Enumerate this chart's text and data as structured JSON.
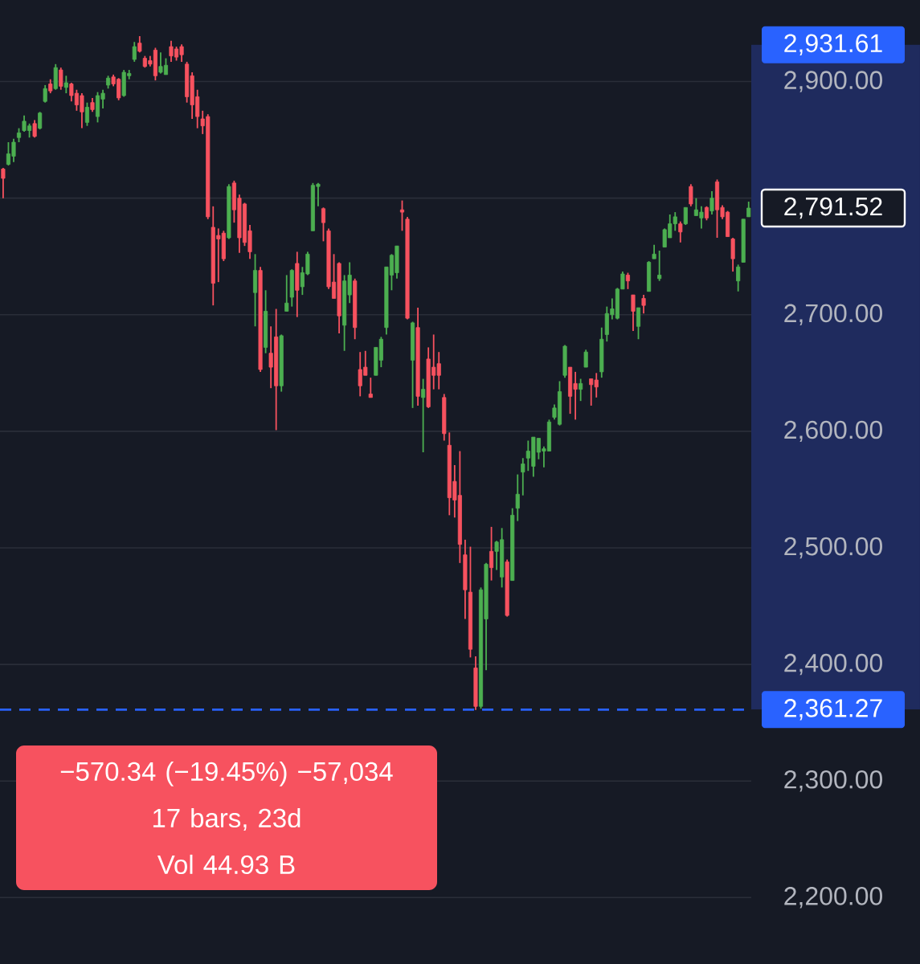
{
  "chart_data": {
    "type": "candlestick",
    "categories": [
      null,
      null,
      null,
      null,
      null,
      null,
      null,
      null,
      null,
      null,
      null,
      null,
      null,
      null,
      null,
      null,
      null,
      null,
      null,
      null,
      null,
      null,
      null,
      null,
      null,
      null,
      null,
      null,
      null,
      null,
      null,
      null,
      null,
      null,
      null,
      null,
      null,
      null,
      null,
      null,
      null,
      null,
      null,
      null,
      null,
      null,
      null,
      null,
      null,
      null,
      null,
      null,
      null,
      null,
      null,
      null,
      null,
      null,
      null,
      null,
      null,
      null,
      null,
      null,
      null,
      null,
      null,
      null,
      null,
      null,
      null,
      null,
      null,
      null,
      null,
      null,
      null,
      null,
      null,
      null,
      null,
      null,
      null,
      null,
      null,
      null,
      null,
      null,
      null,
      null,
      null,
      null,
      null,
      null,
      null,
      null,
      null,
      null,
      null,
      null,
      null,
      null,
      null,
      null,
      null,
      null,
      null,
      null,
      null,
      null,
      null,
      null,
      null,
      null,
      null,
      null,
      null,
      null,
      null,
      null,
      null,
      null,
      null,
      null,
      null,
      null,
      null,
      null,
      null,
      null,
      null,
      null,
      null,
      null,
      null,
      null,
      null,
      null,
      null,
      null,
      null,
      null,
      null
    ],
    "ohlc": [
      [
        2825,
        2826,
        2800,
        2817
      ],
      [
        2829,
        2848,
        2828,
        2838
      ],
      [
        2836,
        2851,
        2831,
        2848
      ],
      [
        2852,
        2860,
        2848,
        2856
      ],
      [
        2858,
        2871,
        2857,
        2866
      ],
      [
        2858,
        2864,
        2852,
        2862
      ],
      [
        2864,
        2867,
        2852,
        2853
      ],
      [
        2860,
        2874,
        2859,
        2873
      ],
      [
        2883,
        2897,
        2882,
        2894
      ],
      [
        2898,
        2902,
        2890,
        2892
      ],
      [
        2894,
        2915,
        2893,
        2912
      ],
      [
        2910,
        2912,
        2893,
        2896
      ],
      [
        2895,
        2905,
        2890,
        2899
      ],
      [
        2898,
        2899,
        2883,
        2888
      ],
      [
        2890,
        2893,
        2875,
        2880
      ],
      [
        2888,
        2890,
        2860,
        2874
      ],
      [
        2865,
        2882,
        2862,
        2878
      ],
      [
        2882,
        2886,
        2874,
        2876
      ],
      [
        2870,
        2891,
        2865,
        2888
      ],
      [
        2885,
        2893,
        2877,
        2890
      ],
      [
        2897,
        2905,
        2894,
        2903
      ],
      [
        2904,
        2906,
        2896,
        2898
      ],
      [
        2902,
        2903,
        2884,
        2886
      ],
      [
        2888,
        2910,
        2887,
        2908
      ],
      [
        2905,
        2910,
        2902,
        2907
      ],
      [
        2919,
        2934,
        2917,
        2930
      ],
      [
        2933,
        2939,
        2925,
        2926
      ],
      [
        2920,
        2922,
        2912,
        2913
      ],
      [
        2918,
        2922,
        2913,
        2915
      ],
      [
        2927,
        2929,
        2901,
        2905
      ],
      [
        2908,
        2925,
        2907,
        2913
      ],
      [
        2906,
        2920,
        2906,
        2914
      ],
      [
        2930,
        2935,
        2917,
        2922
      ],
      [
        2928,
        2930,
        2918,
        2921
      ],
      [
        2930,
        2932,
        2917,
        2923
      ],
      [
        2915,
        2917,
        2882,
        2887
      ],
      [
        2905,
        2908,
        2868,
        2880
      ],
      [
        2887,
        2893,
        2860,
        2870
      ],
      [
        2868,
        2875,
        2855,
        2862
      ],
      [
        2870,
        2872,
        2782,
        2784
      ],
      [
        2775,
        2793,
        2708,
        2727
      ],
      [
        2768,
        2774,
        2728,
        2765
      ],
      [
        2770,
        2772,
        2746,
        2748
      ],
      [
        2766,
        2812,
        2765,
        2810
      ],
      [
        2813,
        2815,
        2779,
        2790
      ],
      [
        2800,
        2803,
        2753,
        2766
      ],
      [
        2795,
        2796,
        2759,
        2762
      ],
      [
        2772,
        2777,
        2748,
        2754
      ],
      [
        2719,
        2752,
        2690,
        2738
      ],
      [
        2738,
        2741,
        2651,
        2653
      ],
      [
        2672,
        2721,
        2667,
        2703
      ],
      [
        2667,
        2690,
        2637,
        2655
      ],
      [
        2681,
        2705,
        2601,
        2639
      ],
      [
        2639,
        2683,
        2634,
        2682
      ],
      [
        2703,
        2734,
        2703,
        2710
      ],
      [
        2715,
        2739,
        2707,
        2738
      ],
      [
        2744,
        2754,
        2698,
        2721
      ],
      [
        2724,
        2741,
        2717,
        2736
      ],
      [
        2735,
        2754,
        2734,
        2752
      ],
      [
        2772,
        2813,
        2772,
        2811
      ],
      [
        2810,
        2813,
        2793,
        2812
      ],
      [
        2791,
        2792,
        2763,
        2779
      ],
      [
        2772,
        2774,
        2722,
        2724
      ],
      [
        2728,
        2752,
        2714,
        2714
      ],
      [
        2744,
        2745,
        2684,
        2699
      ],
      [
        2691,
        2734,
        2669,
        2729
      ],
      [
        2717,
        2745,
        2710,
        2734
      ],
      [
        2729,
        2731,
        2679,
        2689
      ],
      [
        2653,
        2668,
        2630,
        2639
      ],
      [
        2655,
        2669,
        2648,
        2648
      ],
      [
        2632,
        2646,
        2629,
        2629
      ],
      [
        2648,
        2672,
        2648,
        2672
      ],
      [
        2661,
        2681,
        2655,
        2679
      ],
      [
        2689,
        2741,
        2683,
        2741
      ],
      [
        2734,
        2752,
        2721,
        2751
      ],
      [
        2736,
        2759,
        2731,
        2759
      ],
      [
        2790,
        2798,
        2772,
        2788
      ],
      [
        2782,
        2784,
        2696,
        2697
      ],
      [
        2661,
        2694,
        2620,
        2693
      ],
      [
        2689,
        2706,
        2622,
        2630
      ],
      [
        2629,
        2645,
        2582,
        2636
      ],
      [
        2662,
        2672,
        2620,
        2621
      ],
      [
        2655,
        2683,
        2636,
        2648
      ],
      [
        2658,
        2668,
        2636,
        2648
      ],
      [
        2629,
        2632,
        2592,
        2598
      ],
      [
        2588,
        2599,
        2528,
        2543
      ],
      [
        2557,
        2571,
        2526,
        2541
      ],
      [
        2545,
        2583,
        2487,
        2503
      ],
      [
        2494,
        2507,
        2439,
        2464
      ],
      [
        2462,
        2501,
        2406,
        2413
      ],
      [
        2397,
        2407,
        2361,
        2364
      ],
      [
        2364,
        2466,
        2362,
        2464
      ],
      [
        2439,
        2487,
        2395,
        2486
      ],
      [
        2497,
        2518,
        2472,
        2483
      ],
      [
        2497,
        2506,
        2481,
        2505
      ],
      [
        2475,
        2517,
        2466,
        2507
      ],
      [
        2488,
        2490,
        2441,
        2442
      ],
      [
        2472,
        2534,
        2472,
        2528
      ],
      [
        2534,
        2563,
        2523,
        2546
      ],
      [
        2565,
        2577,
        2545,
        2572
      ],
      [
        2577,
        2592,
        2566,
        2583
      ],
      [
        2570,
        2595,
        2561,
        2595
      ],
      [
        2582,
        2594,
        2576,
        2594
      ],
      [
        2583,
        2587,
        2569,
        2585
      ],
      [
        2583,
        2610,
        2583,
        2608
      ],
      [
        2612,
        2623,
        2610,
        2620
      ],
      [
        2606,
        2643,
        2605,
        2634
      ],
      [
        2648,
        2674,
        2646,
        2673
      ],
      [
        2655,
        2655,
        2615,
        2630
      ],
      [
        2641,
        2651,
        2610,
        2636
      ],
      [
        2636,
        2645,
        2626,
        2641
      ],
      [
        2655,
        2670,
        2655,
        2668
      ],
      [
        2645,
        2645,
        2622,
        2640
      ],
      [
        2644,
        2650,
        2629,
        2638
      ],
      [
        2651,
        2689,
        2646,
        2679
      ],
      [
        2683,
        2707,
        2677,
        2701
      ],
      [
        2700,
        2714,
        2696,
        2705
      ],
      [
        2697,
        2723,
        2696,
        2722
      ],
      [
        2722,
        2737,
        2722,
        2735
      ],
      [
        2734,
        2736,
        2722,
        2729
      ],
      [
        2717,
        2717,
        2686,
        2703
      ],
      [
        2690,
        2706,
        2679,
        2706
      ],
      [
        2714,
        2717,
        2701,
        2708
      ],
      [
        2720,
        2746,
        2720,
        2745
      ],
      [
        2748,
        2760,
        2748,
        2752
      ],
      [
        2731,
        2755,
        2729,
        2734
      ],
      [
        2758,
        2774,
        2758,
        2773
      ],
      [
        2766,
        2786,
        2766,
        2778
      ],
      [
        2778,
        2788,
        2772,
        2784
      ],
      [
        2778,
        2780,
        2762,
        2771
      ],
      [
        2778,
        2792,
        2777,
        2792
      ],
      [
        2810,
        2812,
        2793,
        2795
      ],
      [
        2785,
        2800,
        2785,
        2790
      ],
      [
        2783,
        2793,
        2774,
        2788
      ],
      [
        2792,
        2793,
        2781,
        2783
      ],
      [
        2789,
        2806,
        2786,
        2800
      ],
      [
        2814,
        2816,
        2766,
        2790
      ],
      [
        2792,
        2794,
        2782,
        2784
      ],
      [
        2788,
        2789,
        2767,
        2767
      ],
      [
        2765,
        2766,
        2737,
        2748
      ],
      [
        2729,
        2743,
        2720,
        2741
      ],
      [
        2745,
        2782,
        2745,
        2782
      ],
      [
        2784,
        2797,
        2784,
        2791.52
      ]
    ],
    "colors": [
      "#f7525f",
      "#4caf50",
      "#4caf50",
      "#4caf50",
      "#4caf50",
      "#4caf50",
      "#f7525f",
      "#4caf50",
      "#4caf50",
      "#f7525f",
      "#4caf50",
      "#f7525f",
      "#4caf50",
      "#f7525f",
      "#f7525f",
      "#f7525f",
      "#4caf50",
      "#f7525f",
      "#4caf50",
      "#4caf50",
      "#4caf50",
      "#f7525f",
      "#f7525f",
      "#4caf50",
      "#4caf50",
      "#4caf50",
      "#f7525f",
      "#f7525f",
      "#f7525f",
      "#f7525f",
      "#4caf50",
      "#4caf50",
      "#f7525f",
      "#f7525f",
      "#f7525f",
      "#f7525f",
      "#f7525f",
      "#f7525f",
      "#f7525f",
      "#f7525f",
      "#f7525f",
      "#f7525f",
      "#f7525f",
      "#4caf50",
      "#f7525f",
      "#f7525f",
      "#f7525f",
      "#f7525f",
      "#4caf50",
      "#f7525f",
      "#4caf50",
      "#f7525f",
      "#f7525f",
      "#4caf50",
      "#4caf50",
      "#4caf50",
      "#f7525f",
      "#4caf50",
      "#4caf50",
      "#4caf50",
      "#4caf50",
      "#f7525f",
      "#f7525f",
      "#f7525f",
      "#f7525f",
      "#4caf50",
      "#4caf50",
      "#f7525f",
      "#f7525f",
      "#f7525f",
      "#f7525f",
      "#4caf50",
      "#4caf50",
      "#4caf50",
      "#4caf50",
      "#4caf50",
      "#f7525f",
      "#f7525f",
      "#4caf50",
      "#f7525f",
      "#4caf50",
      "#f7525f",
      "#f7525f",
      "#f7525f",
      "#f7525f",
      "#f7525f",
      "#f7525f",
      "#f7525f",
      "#f7525f",
      "#f7525f",
      "#f7525f",
      "#4caf50",
      "#4caf50",
      "#f7525f",
      "#4caf50",
      "#4caf50",
      "#f7525f",
      "#4caf50",
      "#4caf50",
      "#4caf50",
      "#4caf50",
      "#4caf50",
      "#4caf50",
      "#4caf50",
      "#4caf50",
      "#4caf50",
      "#4caf50",
      "#4caf50",
      "#f7525f",
      "#f7525f",
      "#4caf50",
      "#4caf50",
      "#f7525f",
      "#f7525f",
      "#4caf50",
      "#4caf50",
      "#4caf50",
      "#4caf50",
      "#4caf50",
      "#f7525f",
      "#f7525f",
      "#4caf50",
      "#f7525f",
      "#4caf50",
      "#4caf50",
      "#4caf50",
      "#4caf50",
      "#4caf50",
      "#4caf50",
      "#f7525f",
      "#4caf50",
      "#f7525f",
      "#4caf50",
      "#4caf50",
      "#f7525f",
      "#4caf50",
      "#f7525f",
      "#f7525f",
      "#f7525f",
      "#f7525f",
      "#4caf50",
      "#4caf50",
      "#4caf50"
    ],
    "ylim": [
      2143,
      2970
    ],
    "yticks": [
      {
        "value": 2200,
        "label": "2,200.00"
      },
      {
        "value": 2300,
        "label": "2,300.00"
      },
      {
        "value": 2400,
        "label": "2,400.00"
      },
      {
        "value": 2500,
        "label": "2,500.00"
      },
      {
        "value": 2600,
        "label": "2,600.00"
      },
      {
        "value": 2700,
        "label": "2,700.00"
      },
      {
        "value": 2800,
        "label": null
      },
      {
        "value": 2900,
        "label": "2,900.00"
      }
    ],
    "grid": "y",
    "y2lim": [
      2143,
      2970
    ],
    "y2ticks": [
      {
        "value": 2931.61,
        "label": "2,931.61"
      },
      {
        "value": 2791.52,
        "label": "2,791.52"
      },
      {
        "value": 2361.27,
        "label": "2,361.27"
      }
    ],
    "ref_lines": [
      {
        "axis": "y",
        "value": 2361.27,
        "color": "#2962ff",
        "line_style": "dashed"
      }
    ],
    "annotations": [
      "−570.34 (−19.45%) −57,034",
      "17 bars, 23d",
      "Vol 44.93 B"
    ]
  }
}
